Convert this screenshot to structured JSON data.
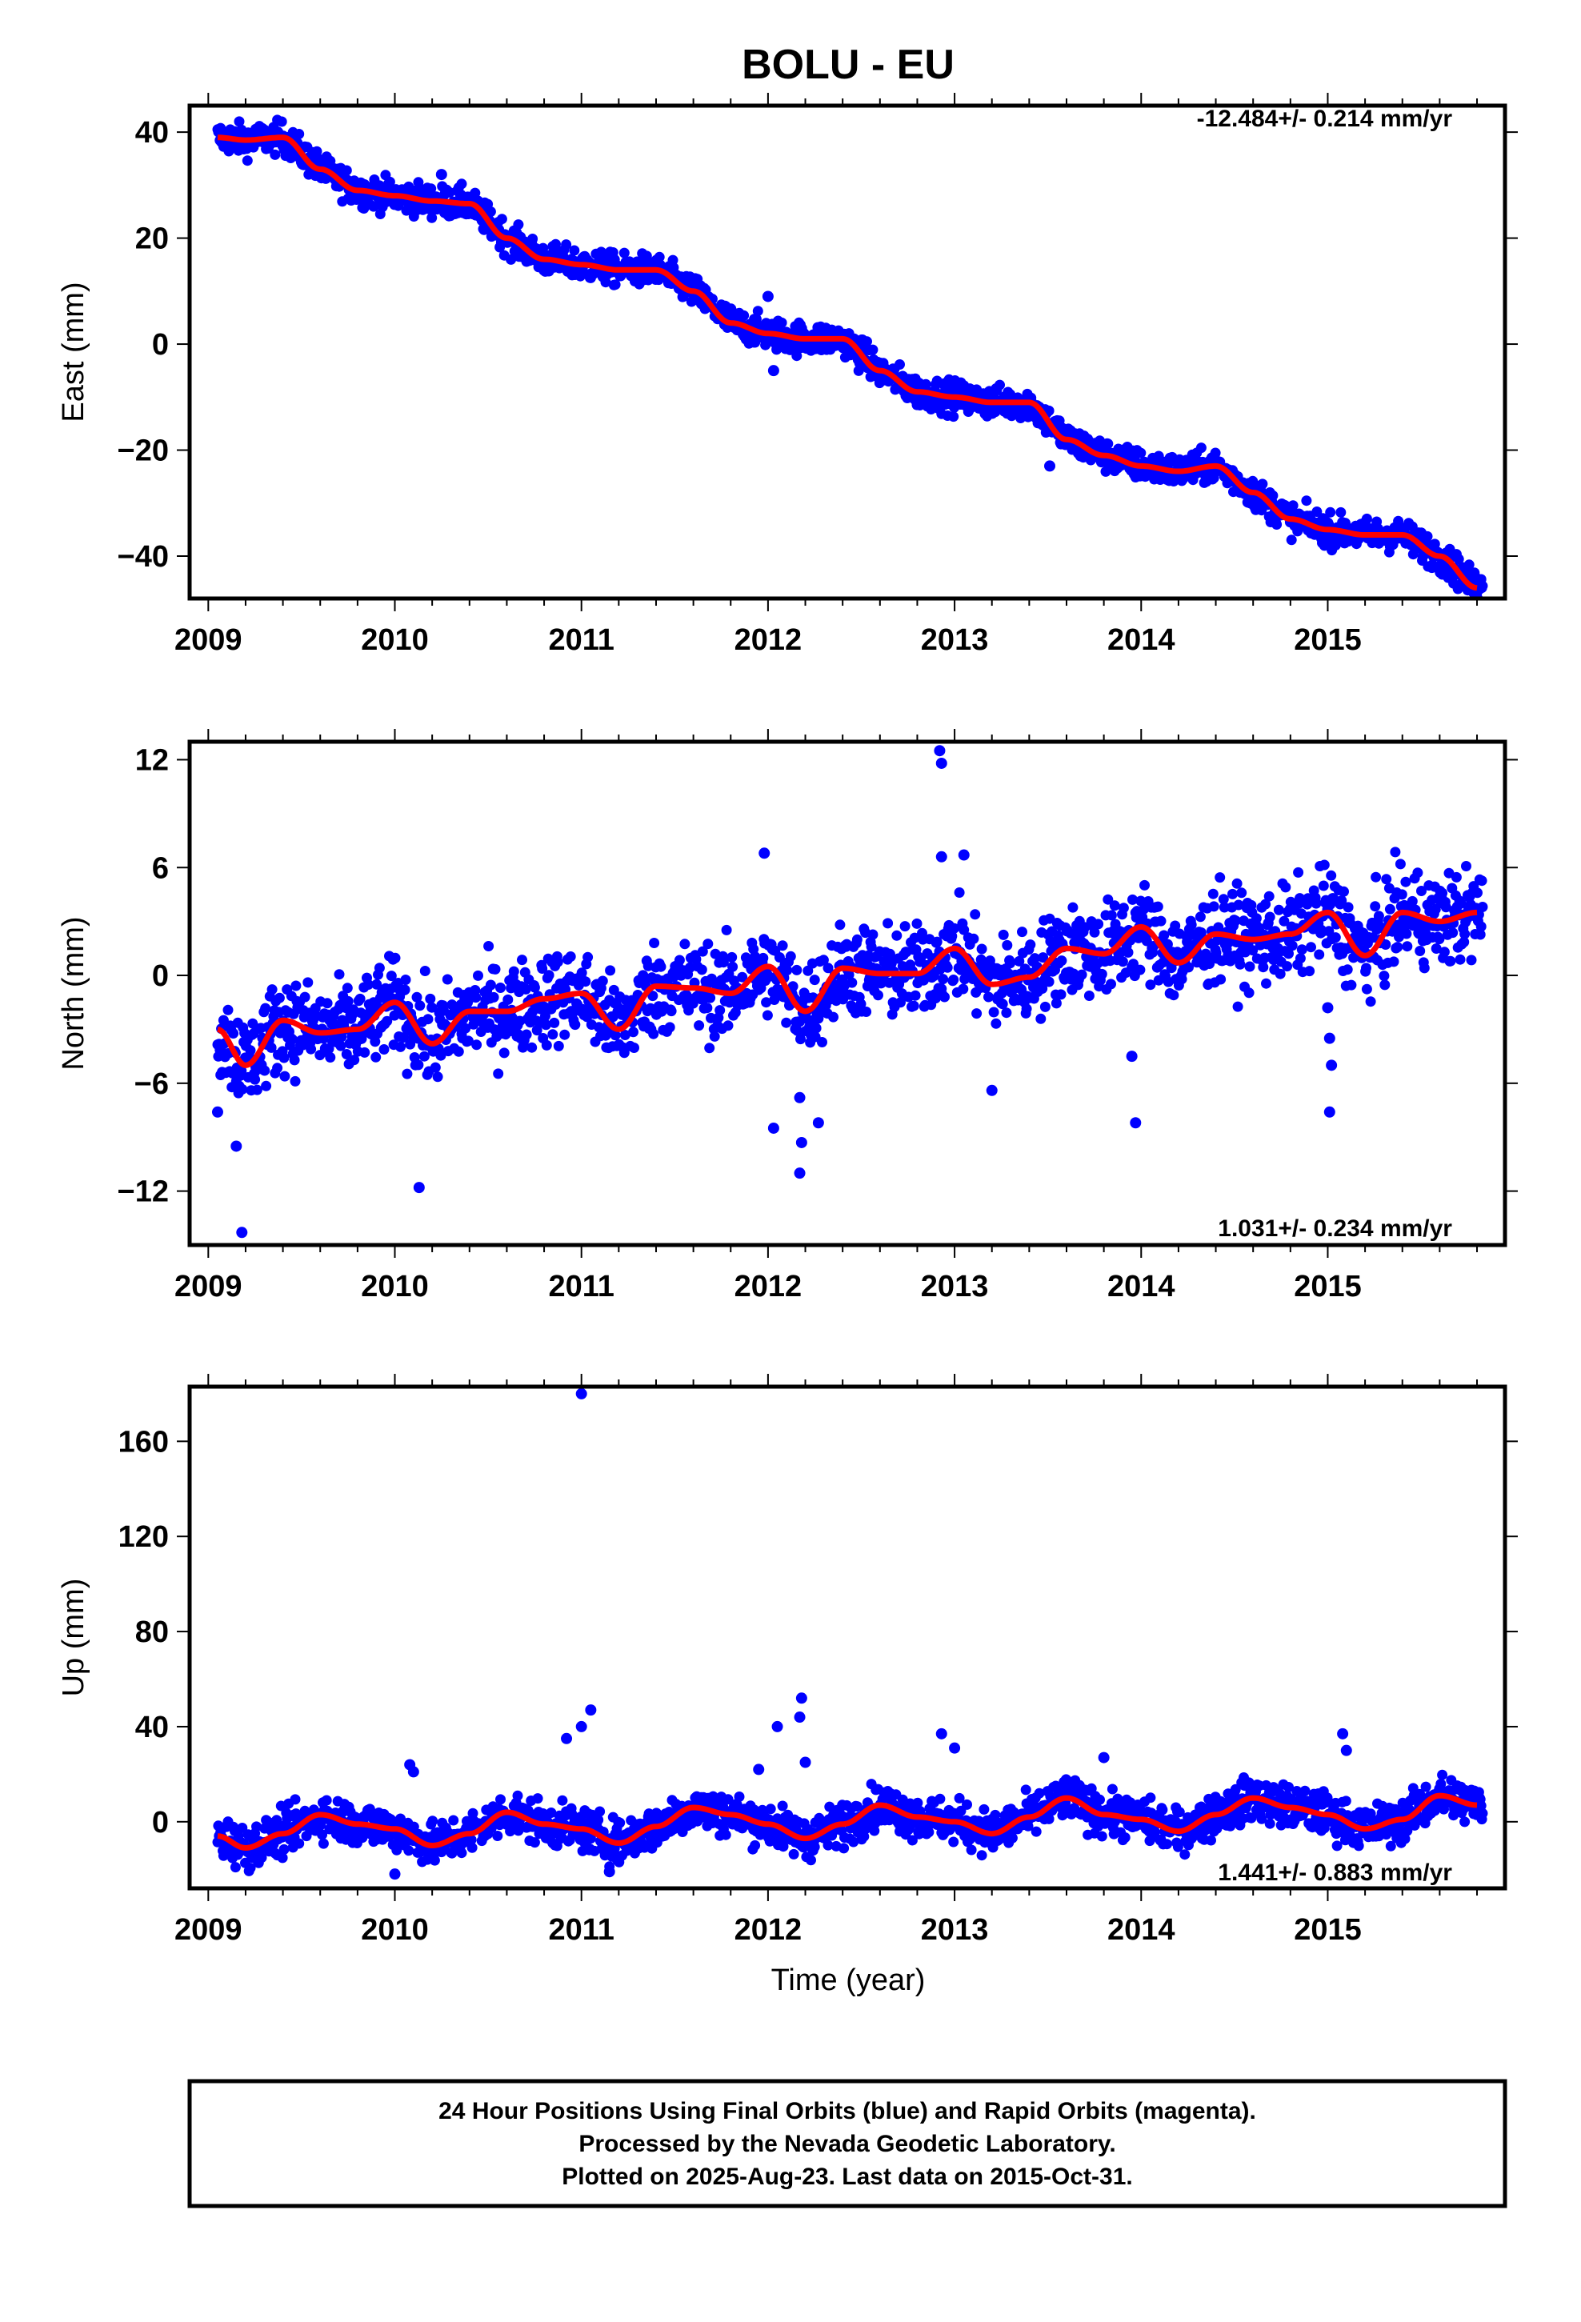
{
  "figure": {
    "title": "BOLU - EU",
    "xlabel": "Time (year)",
    "caption": [
      "24 Hour Positions Using Final Orbits (blue) and Rapid Orbits (magenta).",
      "Processed by the Nevada Geodetic Laboratory.",
      "Plotted on 2025-Aug-23. Last data on 2015-Oct-31."
    ],
    "colors": {
      "points": "#0000ff",
      "fit": "#ff0000",
      "frame": "#000000"
    }
  },
  "chart_data": [
    {
      "type": "scatter",
      "ylabel": "East (mm)",
      "rate_label": "-12.484+/- 0.214 mm/yr",
      "xlim": [
        2008.9,
        2015.95
      ],
      "ylim": [
        -48,
        45
      ],
      "xticks": [
        2009,
        2010,
        2011,
        2012,
        2013,
        2014,
        2015
      ],
      "yticks": [
        40,
        20,
        0,
        -20,
        -40
      ],
      "fit": {
        "x": [
          2009.05,
          2009.2,
          2009.4,
          2009.6,
          2009.8,
          2010.0,
          2010.2,
          2010.4,
          2010.6,
          2010.8,
          2011.0,
          2011.2,
          2011.4,
          2011.6,
          2011.8,
          2012.0,
          2012.2,
          2012.4,
          2012.6,
          2012.8,
          2013.0,
          2013.2,
          2013.4,
          2013.6,
          2013.8,
          2014.0,
          2014.2,
          2014.4,
          2014.6,
          2014.8,
          2015.0,
          2015.2,
          2015.4,
          2015.6,
          2015.8
        ],
        "y": [
          39,
          38.5,
          39,
          33,
          29,
          28,
          27,
          26.5,
          20,
          16,
          15,
          14,
          14,
          10,
          4,
          2,
          1,
          1,
          -5,
          -9,
          -10,
          -11,
          -11,
          -18,
          -21,
          -23,
          -24,
          -23,
          -28,
          -33,
          -35,
          -36,
          -36,
          -40,
          -46
        ]
      },
      "noise": 1.5,
      "outliers": [
        {
          "x": 2012.0,
          "y": 9
        },
        {
          "x": 2012.03,
          "y": -5
        },
        {
          "x": 2013.51,
          "y": -23
        },
        {
          "x": 2010.25,
          "y": 32
        }
      ]
    },
    {
      "type": "scatter",
      "ylabel": "North (mm)",
      "rate_label": "1.031+/- 0.234 mm/yr",
      "xlim": [
        2008.9,
        2015.95
      ],
      "ylim": [
        -15,
        13
      ],
      "xticks": [
        2009,
        2010,
        2011,
        2012,
        2013,
        2014,
        2015
      ],
      "yticks": [
        12,
        6,
        0,
        -6,
        -12
      ],
      "fit": {
        "x": [
          2009.05,
          2009.2,
          2009.4,
          2009.6,
          2009.8,
          2010.0,
          2010.2,
          2010.4,
          2010.6,
          2010.8,
          2011.0,
          2011.2,
          2011.4,
          2011.6,
          2011.8,
          2012.0,
          2012.2,
          2012.4,
          2012.6,
          2012.8,
          2013.0,
          2013.2,
          2013.4,
          2013.6,
          2013.8,
          2014.0,
          2014.2,
          2014.4,
          2014.6,
          2014.8,
          2015.0,
          2015.2,
          2015.4,
          2015.6,
          2015.8
        ],
        "y": [
          -3,
          -5,
          -2.5,
          -3.2,
          -3,
          -1.5,
          -3.8,
          -2,
          -2,
          -1.3,
          -1,
          -3,
          -0.6,
          -0.7,
          -1,
          0.5,
          -2,
          0.4,
          0.1,
          0.1,
          1.5,
          -0.5,
          -0.1,
          1.5,
          1.2,
          2.7,
          0.7,
          2.3,
          2,
          2.3,
          3.5,
          1.1,
          3.5,
          3,
          3.5
        ]
      },
      "noise": 1.3,
      "outliers": [
        {
          "x": 2009.05,
          "y": -7.6
        },
        {
          "x": 2009.15,
          "y": -9.5
        },
        {
          "x": 2009.18,
          "y": -14.3
        },
        {
          "x": 2010.13,
          "y": -11.8
        },
        {
          "x": 2011.98,
          "y": 6.8
        },
        {
          "x": 2012.03,
          "y": -8.5
        },
        {
          "x": 2012.17,
          "y": -6.8
        },
        {
          "x": 2012.18,
          "y": -9.3
        },
        {
          "x": 2012.17,
          "y": -11
        },
        {
          "x": 2012.27,
          "y": -8.2
        },
        {
          "x": 2012.92,
          "y": 12.5
        },
        {
          "x": 2012.93,
          "y": 11.8
        },
        {
          "x": 2012.93,
          "y": 6.6
        },
        {
          "x": 2013.05,
          "y": 6.7
        },
        {
          "x": 2013.2,
          "y": -6.4
        },
        {
          "x": 2013.95,
          "y": -4.5
        },
        {
          "x": 2013.97,
          "y": -8.2
        },
        {
          "x": 2015.0,
          "y": -1.8
        },
        {
          "x": 2015.01,
          "y": -3.5
        },
        {
          "x": 2015.02,
          "y": -5
        },
        {
          "x": 2015.01,
          "y": -7.6
        }
      ]
    },
    {
      "type": "scatter",
      "ylabel": "Up (mm)",
      "rate_label": "1.441+/- 0.883 mm/yr",
      "xlim": [
        2008.9,
        2015.95
      ],
      "ylim": [
        -28,
        183
      ],
      "xticks": [
        2009,
        2010,
        2011,
        2012,
        2013,
        2014,
        2015
      ],
      "yticks": [
        160,
        120,
        80,
        40,
        0
      ],
      "fit": {
        "x": [
          2009.05,
          2009.2,
          2009.4,
          2009.6,
          2009.8,
          2010.0,
          2010.2,
          2010.4,
          2010.6,
          2010.8,
          2011.0,
          2011.2,
          2011.4,
          2011.6,
          2011.8,
          2012.0,
          2012.2,
          2012.4,
          2012.6,
          2012.8,
          2013.0,
          2013.2,
          2013.4,
          2013.6,
          2013.8,
          2014.0,
          2014.2,
          2014.4,
          2014.6,
          2014.8,
          2015.0,
          2015.2,
          2015.4,
          2015.6,
          2015.8
        ],
        "y": [
          -6,
          -11,
          -5,
          3,
          -1,
          -3,
          -10,
          -5,
          4,
          -1,
          -3,
          -9,
          -2,
          6,
          3,
          -1,
          -7,
          -1,
          7,
          2,
          0,
          -5,
          2,
          10,
          3,
          1,
          -4,
          3,
          10,
          6,
          3,
          -3,
          1,
          11,
          7
        ]
      },
      "noise": 4.5,
      "outliers": [
        {
          "x": 2010.08,
          "y": 24
        },
        {
          "x": 2010.1,
          "y": 21
        },
        {
          "x": 2011.0,
          "y": 180
        },
        {
          "x": 2010.92,
          "y": 35
        },
        {
          "x": 2011.05,
          "y": 47
        },
        {
          "x": 2011.0,
          "y": 40
        },
        {
          "x": 2011.95,
          "y": 22
        },
        {
          "x": 2012.05,
          "y": 40
        },
        {
          "x": 2012.18,
          "y": 52
        },
        {
          "x": 2012.17,
          "y": 44
        },
        {
          "x": 2012.2,
          "y": 25
        },
        {
          "x": 2012.93,
          "y": 37
        },
        {
          "x": 2013.0,
          "y": 31
        },
        {
          "x": 2013.8,
          "y": 27
        },
        {
          "x": 2015.08,
          "y": 37
        },
        {
          "x": 2015.1,
          "y": 30
        },
        {
          "x": 2010.0,
          "y": -22
        },
        {
          "x": 2011.15,
          "y": -21
        }
      ]
    }
  ]
}
